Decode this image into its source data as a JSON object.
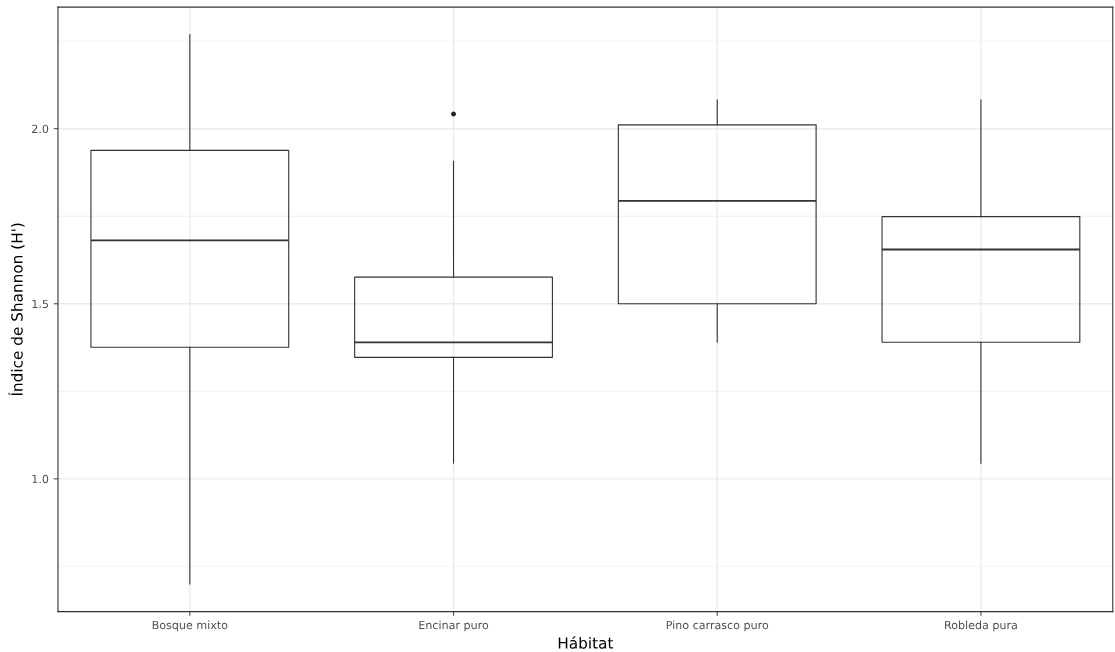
{
  "chart_data": {
    "type": "box",
    "xlabel": "Hábitat",
    "ylabel": "Índice de Shannon (H')",
    "categories": [
      "Bosque mixto",
      "Encinar puro",
      "Pino carrasco puro",
      "Robleda pura"
    ],
    "boxes": [
      {
        "low": 0.7,
        "q1": 1.376,
        "median": 1.681,
        "q3": 1.938,
        "high": 2.268
      },
      {
        "low": 1.045,
        "q1": 1.347,
        "median": 1.39,
        "q3": 1.576,
        "high": 1.907,
        "outliers": [
          2.042
        ]
      },
      {
        "low": 1.39,
        "q1": 1.5,
        "median": 1.794,
        "q3": 2.011,
        "high": 2.082
      },
      {
        "low": 1.045,
        "q1": 1.39,
        "median": 1.655,
        "q3": 1.749,
        "high": 2.082
      }
    ],
    "ylim": [
      0.621,
      2.347
    ],
    "yticks": [
      {
        "value": 1.0,
        "label": "1.0"
      },
      {
        "value": 1.5,
        "label": "1.5"
      },
      {
        "value": 2.0,
        "label": "2.0"
      }
    ],
    "grid": true
  }
}
